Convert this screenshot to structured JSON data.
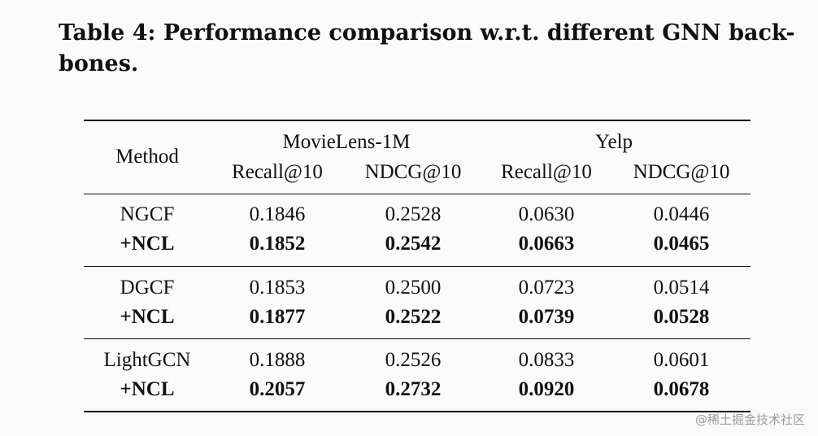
{
  "caption": {
    "line1": "Table 4: Performance comparison w.r.t. different GNN back-",
    "line2": "bones."
  },
  "table": {
    "method_header": "Method",
    "groups": [
      {
        "name": "MovieLens-1M"
      },
      {
        "name": "Yelp"
      }
    ],
    "metrics": [
      "Recall@10",
      "NDCG@10",
      "Recall@10",
      "NDCG@10"
    ],
    "rows": [
      {
        "method": "NGCF",
        "values": [
          "0.1846",
          "0.2528",
          "0.0630",
          "0.0446"
        ]
      },
      {
        "method": "+NCL",
        "values": [
          "0.1852",
          "0.2542",
          "0.0663",
          "0.0465"
        ]
      },
      {
        "method": "DGCF",
        "values": [
          "0.1853",
          "0.2500",
          "0.0723",
          "0.0514"
        ]
      },
      {
        "method": "+NCL",
        "values": [
          "0.1877",
          "0.2522",
          "0.0739",
          "0.0528"
        ]
      },
      {
        "method": "LightGCN",
        "values": [
          "0.1888",
          "0.2526",
          "0.0833",
          "0.0601"
        ]
      },
      {
        "method": "+NCL",
        "values": [
          "0.2057",
          "0.2732",
          "0.0920",
          "0.0678"
        ]
      }
    ]
  },
  "watermark": "@稀土掘金技术社区"
}
